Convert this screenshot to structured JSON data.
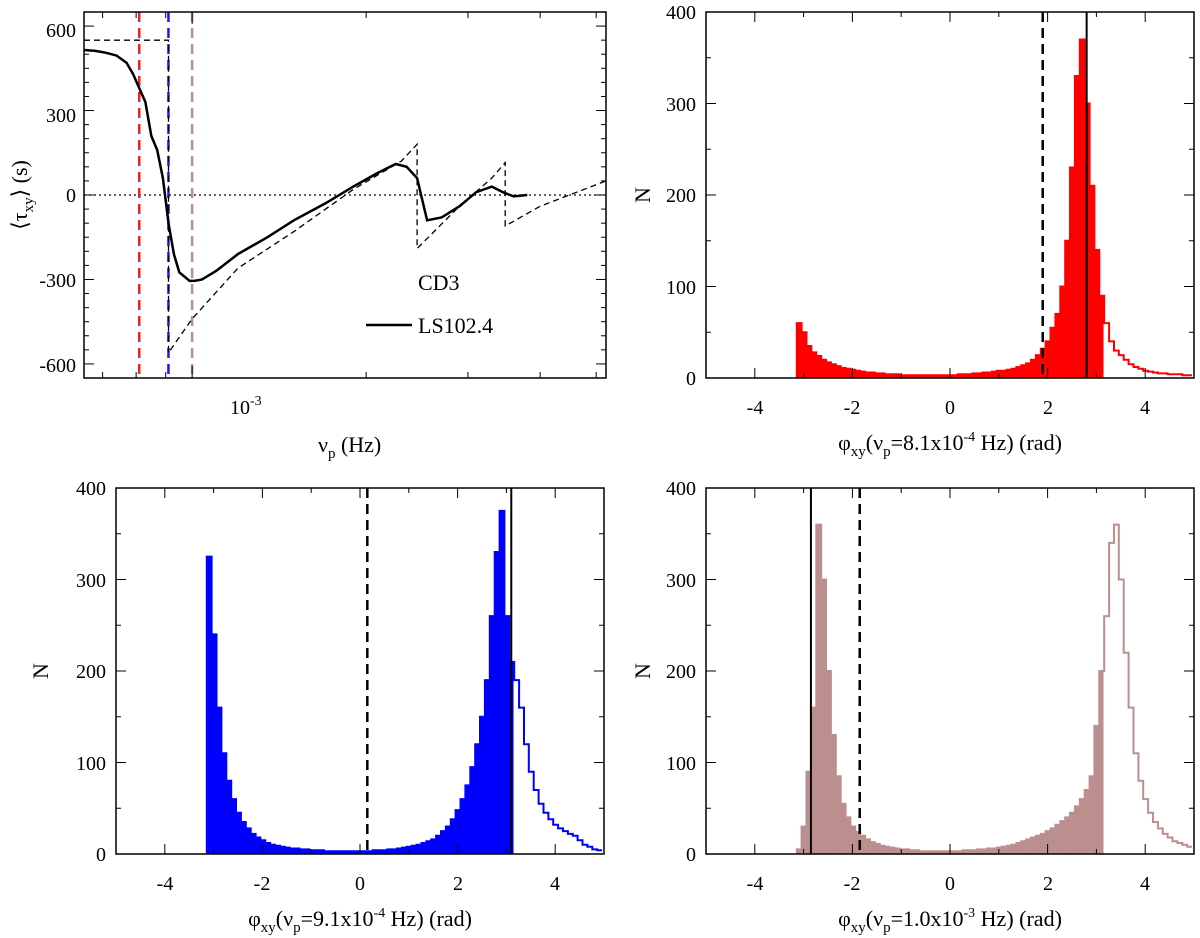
{
  "chart_data": [
    {
      "type": "line",
      "ylabel_main": "⟨τ",
      "ylabel_sub": "xy",
      "ylabel_tail": "⟩ (s)",
      "xlabel_main": "ν",
      "xlabel_sub": "p",
      "xlabel_tail": " (Hz)",
      "x_scale": "log",
      "xlim": [
        0.00065,
        0.0052
      ],
      "ylim": [
        -650,
        650
      ],
      "x_tick_base": "10",
      "x_tick_exp": "-3",
      "y_ticks": [
        "600",
        "300",
        "0",
        "-300",
        "-600"
      ],
      "legend": {
        "title": "CD3",
        "entries": [
          "LS102.4"
        ]
      },
      "series": [
        {
          "name": "LS102.4",
          "style": "solid",
          "x": [
            0.00065,
            0.00068,
            0.00071,
            0.00074,
            0.00077,
            0.00079,
            0.00081,
            0.00083,
            0.00085,
            0.00087,
            0.00089,
            0.00091,
            0.00093,
            0.00095,
            0.00097,
            0.00099,
            0.00101,
            0.00104,
            0.0011,
            0.0012,
            0.00135,
            0.0015,
            0.0017,
            0.0019,
            0.0021,
            0.00225,
            0.00235,
            0.00245,
            0.00255,
            0.0027,
            0.0029,
            0.0031,
            0.0033,
            0.00345,
            0.0036,
            0.0038
          ],
          "y": [
            515,
            512,
            505,
            495,
            470,
            430,
            380,
            330,
            210,
            160,
            60,
            -100,
            -210,
            -275,
            -290,
            -305,
            -305,
            -300,
            -270,
            -210,
            -150,
            -90,
            -30,
            30,
            80,
            110,
            100,
            60,
            -90,
            -80,
            -40,
            10,
            30,
            10,
            -5,
            0
          ]
        },
        {
          "name": "",
          "style": "dashed",
          "x": [
            0.00065,
            0.00091,
            0.00091,
            0.001,
            0.0012,
            0.0015,
            0.0019,
            0.0023,
            0.00245,
            0.00245,
            0.0029,
            0.0033,
            0.00348,
            0.00348,
            0.004,
            0.0052
          ],
          "y": [
            550,
            550,
            -560,
            -440,
            -260,
            -130,
            20,
            120,
            180,
            -190,
            -40,
            60,
            115,
            -110,
            -40,
            50
          ]
        }
      ],
      "zero_line": "dotted",
      "vlines": [
        {
          "x": 0.00081,
          "color": "#ee2222"
        },
        {
          "x": 0.00091,
          "color": "#1a1aee"
        },
        {
          "x": 0.001,
          "color": "#bc8f8f"
        }
      ]
    },
    {
      "type": "histogram",
      "color": "#ff0000",
      "ylabel": "N",
      "xlabel_main": "φ",
      "xlabel_sub": "xy",
      "xlabel_mid": "(ν",
      "xlabel_sub2": "p",
      "xlabel_eq": "=8.1x10",
      "xlabel_exp": "-4",
      "xlabel_tail": " Hz) (rad)",
      "xlim": [
        -5,
        5
      ],
      "ylim": [
        0,
        400
      ],
      "x_ticks": [
        "-4",
        "-2",
        "0",
        "2",
        "4"
      ],
      "y_ticks": [
        "400",
        "300",
        "200",
        "100",
        "0"
      ],
      "bins_x": [
        -3.14,
        -3.04,
        -2.94,
        -2.84,
        -2.74,
        -2.64,
        -2.54,
        -2.44,
        -2.34,
        -2.24,
        -2.14,
        -2.04,
        -1.94,
        -1.84,
        -1.74,
        -1.64,
        -1.54,
        -1.44,
        -1.34,
        -1.24,
        -1.14,
        -1.04,
        -0.94,
        -0.84,
        -0.74,
        -0.64,
        -0.54,
        -0.44,
        -0.34,
        -0.24,
        -0.14,
        -0.04,
        0.06,
        0.16,
        0.26,
        0.36,
        0.46,
        0.56,
        0.66,
        0.76,
        0.86,
        0.96,
        1.06,
        1.16,
        1.26,
        1.36,
        1.46,
        1.56,
        1.66,
        1.76,
        1.86,
        1.96,
        2.06,
        2.16,
        2.26,
        2.36,
        2.46,
        2.56,
        2.66,
        2.76,
        2.86,
        2.96,
        3.06,
        3.16,
        3.26,
        3.36,
        3.46,
        3.56,
        3.66,
        3.76,
        3.86,
        3.96,
        4.06,
        4.16,
        4.26,
        4.36,
        4.46,
        4.56,
        4.66,
        4.76,
        4.86
      ],
      "bins_y": [
        60,
        50,
        35,
        28,
        24,
        20,
        17,
        15,
        13,
        11,
        10,
        9,
        8,
        7,
        6,
        6,
        5,
        5,
        4,
        4,
        4,
        3,
        3,
        3,
        3,
        3,
        3,
        3,
        3,
        3,
        3,
        3,
        3,
        4,
        4,
        4,
        5,
        5,
        6,
        6,
        7,
        8,
        8,
        9,
        10,
        12,
        14,
        16,
        20,
        25,
        32,
        40,
        55,
        70,
        100,
        150,
        230,
        330,
        370,
        300,
        210,
        140,
        90,
        60,
        40,
        30,
        25,
        20,
        15,
        12,
        10,
        8,
        7,
        6,
        5,
        5,
        4,
        4,
        4,
        3,
        3
      ],
      "bin_width": 0.1,
      "fill_max": 3.14,
      "solid_line": 2.8,
      "dashed_line": 1.9
    },
    {
      "type": "histogram",
      "color": "#0000ff",
      "ylabel": "N",
      "xlabel_main": "φ",
      "xlabel_sub": "xy",
      "xlabel_mid": "(ν",
      "xlabel_sub2": "p",
      "xlabel_eq": "=9.1x10",
      "xlabel_exp": "-4",
      "xlabel_tail": " Hz) (rad)",
      "xlim": [
        -5,
        5
      ],
      "ylim": [
        0,
        400
      ],
      "x_ticks": [
        "-4",
        "-2",
        "0",
        "2",
        "4"
      ],
      "y_ticks": [
        "400",
        "300",
        "200",
        "100",
        "0"
      ],
      "bins_x": [
        -3.14,
        -3.04,
        -2.94,
        -2.84,
        -2.74,
        -2.64,
        -2.54,
        -2.44,
        -2.34,
        -2.24,
        -2.14,
        -2.04,
        -1.94,
        -1.84,
        -1.74,
        -1.64,
        -1.54,
        -1.44,
        -1.34,
        -1.24,
        -1.14,
        -1.04,
        -0.94,
        -0.84,
        -0.74,
        -0.64,
        -0.54,
        -0.44,
        -0.34,
        -0.24,
        -0.14,
        -0.04,
        0.06,
        0.16,
        0.26,
        0.36,
        0.46,
        0.56,
        0.66,
        0.76,
        0.86,
        0.96,
        1.06,
        1.16,
        1.26,
        1.36,
        1.46,
        1.56,
        1.66,
        1.76,
        1.86,
        1.96,
        2.06,
        2.16,
        2.26,
        2.36,
        2.46,
        2.56,
        2.66,
        2.76,
        2.86,
        2.96,
        3.06,
        3.16,
        3.26,
        3.36,
        3.46,
        3.56,
        3.66,
        3.76,
        3.86,
        3.96,
        4.06,
        4.16,
        4.26,
        4.36,
        4.46,
        4.56,
        4.66,
        4.76,
        4.86
      ],
      "bins_y": [
        325,
        240,
        160,
        110,
        80,
        60,
        45,
        35,
        28,
        22,
        18,
        15,
        12,
        10,
        9,
        8,
        7,
        6,
        6,
        5,
        5,
        4,
        4,
        4,
        3,
        3,
        3,
        3,
        3,
        3,
        3,
        3,
        3,
        3,
        4,
        4,
        4,
        5,
        5,
        6,
        7,
        8,
        9,
        10,
        12,
        14,
        16,
        20,
        25,
        30,
        38,
        48,
        60,
        75,
        95,
        120,
        150,
        190,
        260,
        330,
        375,
        260,
        210,
        190,
        160,
        120,
        90,
        70,
        55,
        45,
        38,
        32,
        28,
        25,
        22,
        20,
        15,
        10,
        8,
        5,
        4
      ],
      "bin_width": 0.1,
      "fill_max": 3.14,
      "solid_line": 3.1,
      "dashed_line": 0.15
    },
    {
      "type": "histogram",
      "color": "#bc8f8f",
      "ylabel": "N",
      "xlabel_main": "φ",
      "xlabel_sub": "xy",
      "xlabel_mid": "(ν",
      "xlabel_sub2": "p",
      "xlabel_eq": "=1.0x10",
      "xlabel_exp": "-3",
      "xlabel_tail": " Hz) (rad)",
      "xlim": [
        -5,
        5
      ],
      "ylim": [
        0,
        400
      ],
      "x_ticks": [
        "-4",
        "-2",
        "0",
        "2",
        "4"
      ],
      "y_ticks": [
        "400",
        "300",
        "200",
        "100",
        "0"
      ],
      "bins_x": [
        -3.14,
        -3.04,
        -2.94,
        -2.84,
        -2.74,
        -2.64,
        -2.54,
        -2.44,
        -2.34,
        -2.24,
        -2.14,
        -2.04,
        -1.94,
        -1.84,
        -1.74,
        -1.64,
        -1.54,
        -1.44,
        -1.34,
        -1.24,
        -1.14,
        -1.04,
        -0.94,
        -0.84,
        -0.74,
        -0.64,
        -0.54,
        -0.44,
        -0.34,
        -0.24,
        -0.14,
        -0.04,
        0.06,
        0.16,
        0.26,
        0.36,
        0.46,
        0.56,
        0.66,
        0.76,
        0.86,
        0.96,
        1.06,
        1.16,
        1.26,
        1.36,
        1.46,
        1.56,
        1.66,
        1.76,
        1.86,
        1.96,
        2.06,
        2.16,
        2.26,
        2.36,
        2.46,
        2.56,
        2.66,
        2.76,
        2.86,
        2.96,
        3.06,
        3.16,
        3.26,
        3.36,
        3.46,
        3.56,
        3.66,
        3.76,
        3.86,
        3.96,
        4.06,
        4.16,
        4.26,
        4.36,
        4.46,
        4.56,
        4.66,
        4.76,
        4.86
      ],
      "bins_y": [
        5,
        30,
        90,
        160,
        360,
        300,
        200,
        130,
        85,
        55,
        40,
        30,
        24,
        20,
        16,
        13,
        11,
        9,
        8,
        7,
        6,
        5,
        5,
        4,
        4,
        3,
        3,
        3,
        3,
        3,
        3,
        3,
        3,
        3,
        4,
        4,
        4,
        5,
        5,
        6,
        6,
        7,
        8,
        9,
        10,
        12,
        14,
        16,
        18,
        20,
        22,
        25,
        28,
        32,
        36,
        40,
        45,
        52,
        60,
        70,
        85,
        140,
        200,
        260,
        340,
        360,
        300,
        220,
        160,
        110,
        80,
        60,
        45,
        35,
        28,
        22,
        18,
        14,
        12,
        10,
        8
      ],
      "bin_width": 0.1,
      "fill_max": 3.14,
      "solid_line": -2.85,
      "dashed_line": -1.85
    }
  ]
}
